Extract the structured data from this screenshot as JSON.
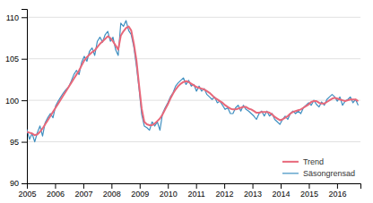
{
  "chart_data": {
    "type": "line",
    "x": [
      2005,
      2005.0925,
      2005.185,
      2005.2776,
      2005.3701,
      2005.4626,
      2005.5551,
      2005.6476,
      2005.7402,
      2005.8327,
      2005.9252,
      2006.0177,
      2006.1102,
      2006.2028,
      2006.2953,
      2006.3878,
      2006.4803,
      2006.5728,
      2006.6654,
      2006.7579,
      2006.8504,
      2006.9429,
      2007.0354,
      2007.128,
      2007.2205,
      2007.313,
      2007.4055,
      2007.498,
      2007.5906,
      2007.6831,
      2007.7756,
      2007.8681,
      2007.9606,
      2008.0531,
      2008.1457,
      2008.2382,
      2008.3307,
      2008.4232,
      2008.5157,
      2008.6083,
      2008.7008,
      2008.7933,
      2008.8858,
      2008.9783,
      2009.0709,
      2009.1634,
      2009.2559,
      2009.3484,
      2009.4409,
      2009.5335,
      2009.626,
      2009.7185,
      2009.811,
      2009.9035,
      2009.9961,
      2010.0886,
      2010.1811,
      2010.2736,
      2010.3661,
      2010.4587,
      2010.5512,
      2010.6437,
      2010.7362,
      2010.8287,
      2010.9213,
      2011.0138,
      2011.1063,
      2011.1988,
      2011.2913,
      2011.3839,
      2011.4764,
      2011.5689,
      2011.6614,
      2011.7539,
      2011.8465,
      2011.939,
      2012.0315,
      2012.124,
      2012.2165,
      2012.3091,
      2012.4016,
      2012.4941,
      2012.5866,
      2012.6791,
      2012.7717,
      2012.8642,
      2012.9567,
      2013.0492,
      2013.1417,
      2013.2343,
      2013.3268,
      2013.4193,
      2013.5118,
      2013.6043,
      2013.6969,
      2013.7894,
      2013.8819,
      2013.9744,
      2014.0669,
      2014.1594,
      2014.252,
      2014.3445,
      2014.437,
      2014.5295,
      2014.622,
      2014.7146,
      2014.8071,
      2014.8996,
      2014.9921,
      2015.0846,
      2015.1772,
      2015.2697,
      2015.3622,
      2015.4547,
      2015.5472,
      2015.6398,
      2015.7323,
      2015.8248,
      2015.9173,
      2016.0098,
      2016.1024,
      2016.1949,
      2016.2874,
      2016.3799,
      2016.4724,
      2016.565,
      2016.6575,
      2016.75
    ],
    "series": [
      {
        "name": "Trend",
        "color": "#e8687a",
        "values": [
          96.2,
          96.1,
          96.0,
          95.8,
          95.9,
          96.2,
          96.6,
          97.1,
          97.6,
          98.1,
          98.6,
          99.1,
          99.6,
          100.1,
          100.6,
          101.1,
          101.6,
          102.1,
          102.6,
          103.1,
          103.6,
          104.2,
          104.8,
          105.2,
          105.5,
          105.8,
          106.0,
          106.4,
          106.8,
          107.1,
          107.4,
          107.7,
          107.5,
          107.1,
          106.6,
          106.1,
          107.8,
          108.3,
          108.7,
          108.9,
          108.4,
          106.8,
          104.8,
          101.8,
          99.0,
          97.4,
          97.1,
          97.0,
          97.0,
          97.2,
          97.5,
          97.8,
          98.3,
          98.9,
          99.5,
          100.2,
          100.8,
          101.3,
          101.7,
          102.0,
          102.2,
          102.3,
          102.2,
          102.0,
          101.8,
          101.6,
          101.5,
          101.4,
          101.3,
          101.1,
          100.9,
          100.6,
          100.3,
          100.1,
          99.9,
          99.7,
          99.4,
          99.2,
          99.0,
          98.9,
          98.9,
          99.0,
          99.1,
          99.2,
          99.2,
          99.0,
          98.9,
          98.7,
          98.5,
          98.5,
          98.6,
          98.6,
          98.6,
          98.5,
          98.3,
          98.0,
          97.8,
          97.6,
          97.7,
          97.9,
          98.1,
          98.4,
          98.6,
          98.7,
          98.8,
          98.9,
          99.1,
          99.3,
          99.5,
          99.8,
          99.9,
          99.9,
          99.7,
          99.6,
          99.6,
          99.8,
          100.0,
          100.2,
          100.3,
          100.2,
          100.1,
          100.0,
          99.9,
          100.0,
          100.1,
          100.1,
          100.1,
          99.9
        ]
      },
      {
        "name": "Säsongrensad",
        "color": "#3e8fc0",
        "values": [
          96.5,
          95.3,
          96.0,
          95.0,
          96.1,
          96.9,
          95.7,
          97.3,
          97.9,
          98.4,
          97.9,
          99.3,
          99.9,
          100.4,
          100.9,
          101.3,
          101.6,
          102.3,
          103.1,
          103.6,
          103.1,
          104.6,
          105.3,
          104.7,
          105.9,
          106.3,
          105.4,
          107.1,
          107.6,
          107.0,
          107.9,
          108.3,
          107.1,
          107.6,
          106.1,
          105.4,
          109.3,
          108.9,
          109.6,
          108.4,
          107.9,
          106.4,
          104.1,
          101.4,
          98.3,
          96.9,
          96.7,
          96.4,
          97.4,
          96.9,
          97.4,
          96.4,
          98.4,
          99.1,
          99.7,
          100.4,
          100.9,
          101.7,
          102.1,
          102.4,
          102.7,
          101.9,
          102.4,
          101.7,
          101.9,
          101.1,
          101.7,
          101.1,
          101.4,
          100.7,
          100.4,
          100.1,
          100.4,
          99.7,
          99.9,
          99.4,
          98.9,
          99.1,
          98.4,
          98.4,
          99.1,
          99.4,
          98.7,
          99.4,
          98.9,
          98.7,
          98.4,
          98.1,
          97.7,
          98.4,
          98.7,
          98.1,
          98.7,
          98.1,
          98.4,
          97.7,
          97.4,
          97.1,
          97.7,
          98.1,
          97.7,
          98.4,
          98.7,
          98.4,
          98.7,
          98.4,
          99.1,
          99.4,
          99.7,
          99.4,
          100.0,
          99.5,
          99.2,
          99.8,
          99.4,
          100.1,
          100.4,
          100.7,
          100.4,
          99.9,
          100.4,
          99.4,
          99.9,
          100.1,
          100.4,
          99.7,
          100.1,
          99.4
        ]
      }
    ],
    "xlim": [
      2005.0,
      2016.83
    ],
    "xticks": [
      2005,
      2006,
      2007,
      2008,
      2009,
      2010,
      2011,
      2012,
      2013,
      2014,
      2015,
      2016
    ],
    "ylim": [
      90,
      111
    ],
    "yticks": [
      90,
      95,
      100,
      105,
      110
    ],
    "grid": "y",
    "legend": "lower right"
  }
}
